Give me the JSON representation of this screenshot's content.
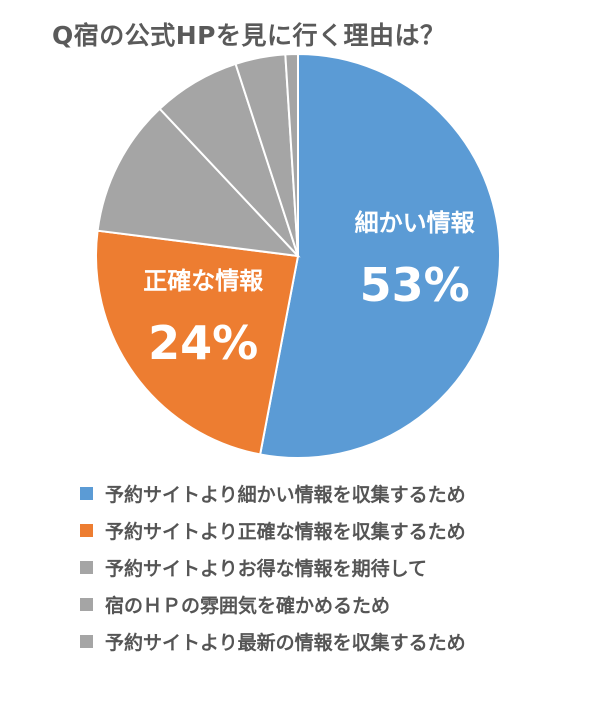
{
  "chart_data": {
    "type": "pie",
    "title": "Q宿の公式HPを見に行く理由は？",
    "unit": "%",
    "slices": [
      {
        "name": "予約サイトより細かい情報を収集するため",
        "value": 53,
        "color": "#5b9bd5",
        "inner_label": "細かい情報",
        "value_label": "53%"
      },
      {
        "name": "予約サイトより正確な情報を収集するため",
        "value": 24,
        "color": "#ed7d31",
        "inner_label": "正確な情報",
        "value_label": "24%"
      },
      {
        "name": "予約サイトよりお得な情報を期待して",
        "value": 11,
        "color": "#a5a5a5"
      },
      {
        "name": "宿のＨＰの雰囲気を確かめるため",
        "value": 7,
        "color": "#a5a5a5"
      },
      {
        "name": "予約サイトより最新の情報を収集するため",
        "value": 4,
        "color": "#a5a5a5"
      },
      {
        "name": "",
        "value": 1,
        "color": "#a5a5a5"
      }
    ],
    "legend_position": "bottom"
  }
}
